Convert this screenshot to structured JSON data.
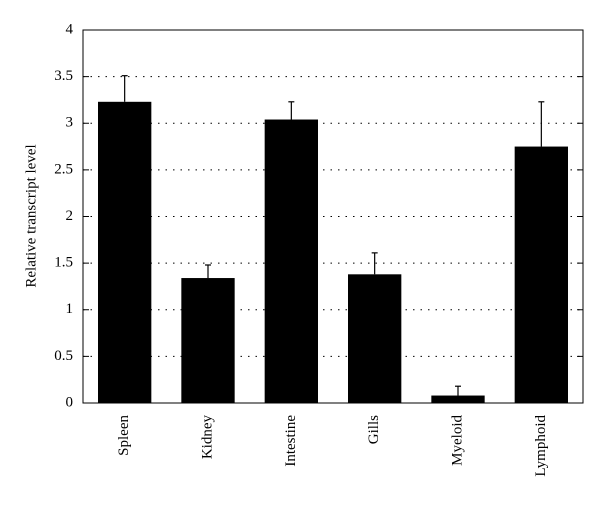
{
  "chart_data": {
    "type": "bar",
    "y_label": "Relative transcript level",
    "categories": [
      "Spleen",
      "Kidney",
      "Intestine",
      "Gills",
      "Myeloid",
      "Lymphoid"
    ],
    "values": [
      3.23,
      1.34,
      3.04,
      1.38,
      0.08,
      2.75
    ],
    "errors": [
      0.28,
      0.14,
      0.19,
      0.23,
      0.1,
      0.48
    ],
    "color": "#000000",
    "ylim": [
      0,
      4
    ],
    "yticks": [
      0,
      0.5,
      1,
      1.5,
      2,
      2.5,
      3,
      3.5,
      4
    ],
    "grid": true
  }
}
